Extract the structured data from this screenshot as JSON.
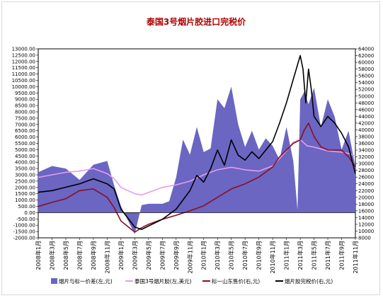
{
  "chart_data": {
    "type": "area+line",
    "title": "泰国3号烟片胶进口完税价",
    "left_axis": {
      "ticks": [
        "-2000.00",
        "-1500.00",
        "-1000.00",
        "-500.00",
        "0.00",
        "500.00",
        "1000.00",
        "1500.00",
        "2000.00",
        "2500.00",
        "3000.00",
        "3500.00",
        "4000.00",
        "4500.00",
        "5000.00",
        "5500.00",
        "6000.00",
        "6500.00",
        "7000.00",
        "7500.00",
        "8000.00",
        "8500.00",
        "9000.00",
        "9500.00",
        "10000.00",
        "10500.00",
        "11000.00",
        "11500.00",
        "12000.00",
        "12500.00",
        "13000.00"
      ],
      "min": -2000,
      "max": 13000
    },
    "right_axis": {
      "ticks": [
        "8000",
        "10000",
        "12000",
        "14000",
        "16000",
        "18000",
        "20000",
        "22000",
        "24000",
        "26000",
        "28000",
        "30000",
        "32000",
        "34000",
        "36000",
        "38000",
        "40000",
        "42000",
        "44000",
        "46000",
        "48000",
        "50000",
        "52000",
        "54000",
        "56000",
        "58000",
        "60000",
        "62000",
        "64000"
      ],
      "min": 8000,
      "max": 64000
    },
    "x_labels": [
      "2008年1月",
      "2008年3月",
      "2008年5月",
      "2008年7月",
      "2008年9月",
      "2008年11月",
      "2009年1月",
      "2009年3月",
      "2009年5月",
      "2009年7月",
      "2009年9月",
      "2009年11月",
      "2010年1月",
      "2010年3月",
      "2010年5月",
      "2010年7月",
      "2010年9月",
      "2010年11月",
      "2011年1月",
      "2011年3月",
      "2011年5月",
      "2011年7月",
      "2011年9月",
      "2011年11月"
    ],
    "series": [
      {
        "name": "烟片与标一价差(左,元)",
        "type": "area",
        "axis": "left",
        "color": "#6a66c2",
        "points": [
          [
            0,
            3200
          ],
          [
            1,
            3700
          ],
          [
            2,
            3500
          ],
          [
            3,
            2600
          ],
          [
            4,
            3800
          ],
          [
            5,
            4100
          ],
          [
            5.5,
            2200
          ],
          [
            6,
            500
          ],
          [
            7,
            -1700
          ],
          [
            7.5,
            600
          ],
          [
            8,
            700
          ],
          [
            9,
            700
          ],
          [
            9.5,
            900
          ],
          [
            10,
            2800
          ],
          [
            10.5,
            5800
          ],
          [
            11,
            4600
          ],
          [
            11.5,
            6800
          ],
          [
            12,
            4800
          ],
          [
            12.5,
            5100
          ],
          [
            13,
            9000
          ],
          [
            13.5,
            8300
          ],
          [
            14,
            10000
          ],
          [
            14.5,
            7000
          ],
          [
            15,
            5200
          ],
          [
            15.5,
            6500
          ],
          [
            16,
            5000
          ],
          [
            16.5,
            5900
          ],
          [
            17,
            5300
          ],
          [
            17.5,
            4200
          ],
          [
            18,
            6800
          ],
          [
            18.5,
            4100
          ],
          [
            18.8,
            200
          ],
          [
            19,
            9000
          ],
          [
            19.3,
            9600
          ],
          [
            19.6,
            8600
          ],
          [
            20,
            9900
          ],
          [
            20.5,
            6800
          ],
          [
            21,
            9000
          ],
          [
            21.5,
            7600
          ],
          [
            22,
            5000
          ],
          [
            22.5,
            6500
          ],
          [
            23,
            3600
          ]
        ]
      },
      {
        "name": "泰国3号烟片胶(左,美元)",
        "type": "line",
        "axis": "left",
        "color": "#e39cf1",
        "points": [
          [
            0,
            2800
          ],
          [
            1,
            3000
          ],
          [
            2,
            3200
          ],
          [
            3,
            3300
          ],
          [
            4,
            3500
          ],
          [
            5,
            3100
          ],
          [
            5.5,
            2700
          ],
          [
            6,
            2000
          ],
          [
            7,
            1500
          ],
          [
            7.5,
            1400
          ],
          [
            8,
            1600
          ],
          [
            9,
            2000
          ],
          [
            10,
            2200
          ],
          [
            11,
            2500
          ],
          [
            12,
            3000
          ],
          [
            13,
            3400
          ],
          [
            14,
            3600
          ],
          [
            15,
            3400
          ],
          [
            16,
            3300
          ],
          [
            17,
            3700
          ],
          [
            17.5,
            4300
          ],
          [
            18,
            4900
          ],
          [
            18.5,
            5600
          ],
          [
            19,
            5800
          ],
          [
            19.5,
            5300
          ],
          [
            20,
            5200
          ],
          [
            21,
            4900
          ],
          [
            22,
            4800
          ],
          [
            22.5,
            4700
          ],
          [
            23,
            4500
          ]
        ]
      },
      {
        "name": "标一山东售价(右,元)",
        "type": "line",
        "axis": "right",
        "color": "#8a0f1e",
        "points": [
          [
            0,
            17300
          ],
          [
            1,
            18500
          ],
          [
            2,
            19600
          ],
          [
            3,
            22000
          ],
          [
            4,
            22500
          ],
          [
            5,
            20000
          ],
          [
            5.5,
            17000
          ],
          [
            6,
            13000
          ],
          [
            7,
            9700
          ],
          [
            7.5,
            11000
          ],
          [
            8,
            12000
          ],
          [
            9,
            13500
          ],
          [
            10,
            14700
          ],
          [
            11,
            16000
          ],
          [
            12,
            17500
          ],
          [
            13,
            20000
          ],
          [
            14,
            22500
          ],
          [
            15,
            24000
          ],
          [
            16,
            26000
          ],
          [
            17,
            29000
          ],
          [
            17.5,
            32000
          ],
          [
            18,
            34000
          ],
          [
            18.5,
            36000
          ],
          [
            19,
            37000
          ],
          [
            19.3,
            40000
          ],
          [
            19.6,
            42000
          ],
          [
            20,
            38000
          ],
          [
            20.5,
            35000
          ],
          [
            21,
            34000
          ],
          [
            22,
            34000
          ],
          [
            22.5,
            32000
          ],
          [
            23,
            29000
          ]
        ]
      },
      {
        "name": "烟片胶完税价(右,元)",
        "type": "line",
        "axis": "right",
        "color": "#000000",
        "points": [
          [
            0,
            21500
          ],
          [
            1,
            22000
          ],
          [
            2,
            23000
          ],
          [
            3,
            24000
          ],
          [
            4,
            25500
          ],
          [
            5,
            24000
          ],
          [
            5.5,
            22500
          ],
          [
            6,
            16500
          ],
          [
            7,
            11200
          ],
          [
            7.5,
            10500
          ],
          [
            8,
            11500
          ],
          [
            9,
            13500
          ],
          [
            10,
            16500
          ],
          [
            11,
            22000
          ],
          [
            11.5,
            26500
          ],
          [
            12,
            24500
          ],
          [
            12.5,
            28500
          ],
          [
            13,
            34000
          ],
          [
            13.5,
            29500
          ],
          [
            14,
            37000
          ],
          [
            14.5,
            32500
          ],
          [
            15,
            31000
          ],
          [
            15.5,
            33500
          ],
          [
            16,
            31500
          ],
          [
            17,
            36500
          ],
          [
            17.5,
            42000
          ],
          [
            18,
            48000
          ],
          [
            18.5,
            55000
          ],
          [
            19,
            62000
          ],
          [
            19.2,
            58000
          ],
          [
            19.4,
            48000
          ],
          [
            19.6,
            58000
          ],
          [
            19.8,
            52000
          ],
          [
            20,
            44000
          ],
          [
            20.5,
            41000
          ],
          [
            21,
            44000
          ],
          [
            21.5,
            42000
          ],
          [
            22,
            39000
          ],
          [
            22.5,
            35000
          ],
          [
            23,
            27000
          ]
        ]
      }
    ]
  }
}
